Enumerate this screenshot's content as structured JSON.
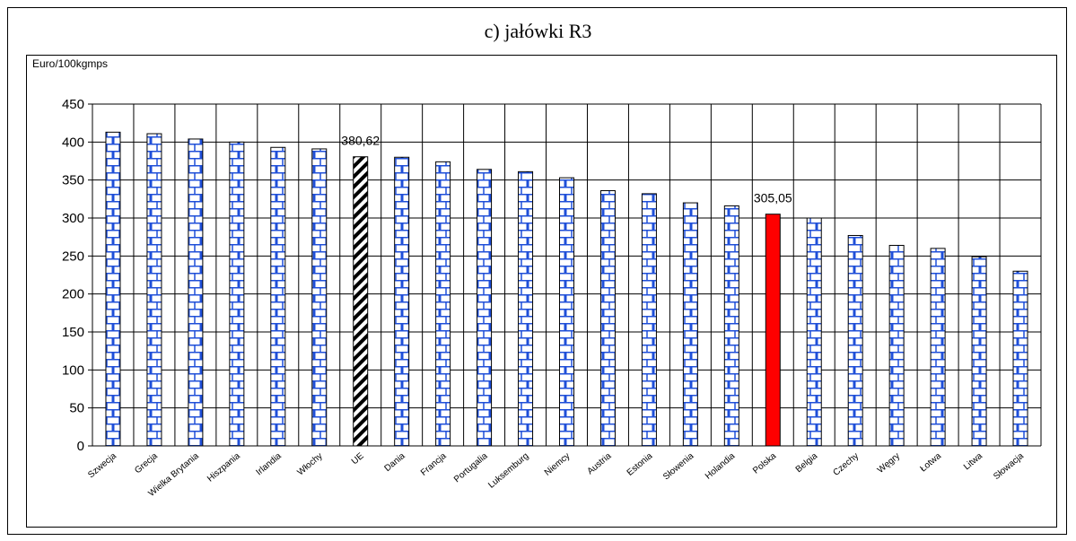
{
  "chart_data": {
    "type": "bar",
    "title": "c) jałówki R3",
    "ylabel": "Euro/100kgmps",
    "xlabel": "",
    "ylim": [
      0,
      450
    ],
    "yticks": [
      0,
      50,
      100,
      150,
      200,
      250,
      300,
      350,
      400,
      450
    ],
    "grid": true,
    "categories": [
      "Szwecja",
      "Grecja",
      "Wielka Brytania",
      "Hiszpania",
      "Irlandia",
      "Włochy",
      "UE",
      "Dania",
      "Francja",
      "Portugalia",
      "Luksemburg",
      "Niemcy",
      "Austria",
      "Estonia",
      "Słowenia",
      "Holandia",
      "Polska",
      "Belgia",
      "Czechy",
      "Węgry",
      "Łotwa",
      "Litwa",
      "Słowacja"
    ],
    "values": [
      413,
      411,
      404,
      400,
      393,
      391,
      380.62,
      380,
      374,
      364,
      361,
      353,
      336,
      332,
      320,
      316,
      305.05,
      300,
      277,
      264,
      260,
      249,
      230
    ],
    "data_labels": [
      {
        "category": "UE",
        "text": "380,62"
      },
      {
        "category": "Polska",
        "text": "305,05"
      }
    ],
    "bar_styles": {
      "default": "blue-brick",
      "UE": "black-diagonal-hatch",
      "Polska": "solid-red"
    },
    "colors": {
      "brick_fill": "#ffffff",
      "brick_line": "#1f4fd8",
      "highlight": "#ff0000",
      "hatch": "#000000",
      "grid": "#000000"
    }
  }
}
